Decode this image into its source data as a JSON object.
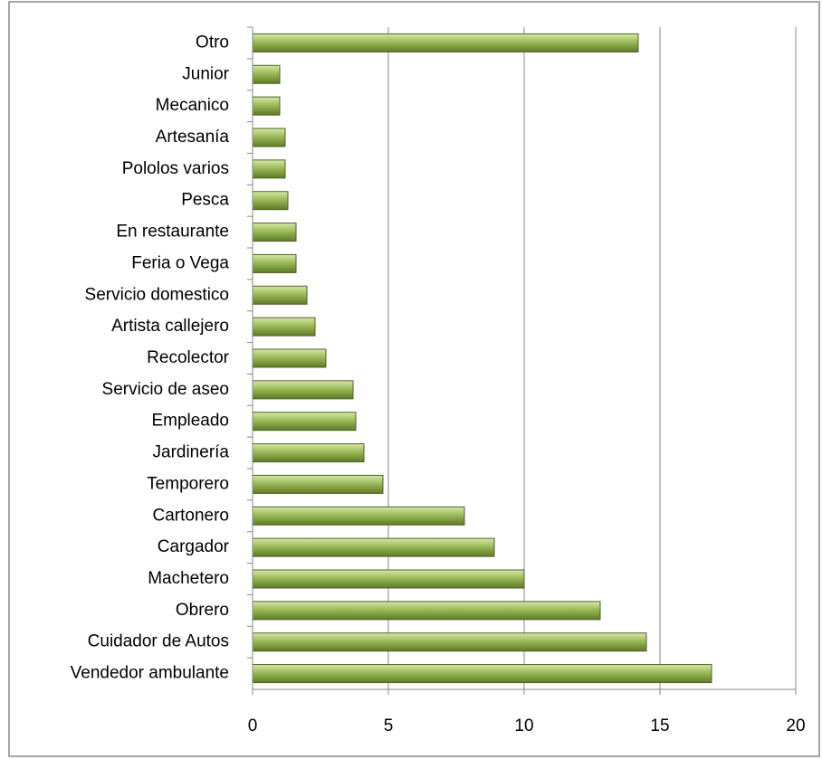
{
  "chart_data": {
    "type": "bar",
    "orientation": "horizontal",
    "categories": [
      "Otro",
      "Junior",
      "Mecanico",
      "Artesanía",
      "Pololos varios",
      "Pesca",
      "En restaurante",
      "Feria o Vega",
      "Servicio domestico",
      "Artista callejero",
      "Recolector",
      "Servicio de aseo",
      "Empleado",
      "Jardinería",
      "Temporero",
      "Cartonero",
      "Cargador",
      "Machetero",
      "Obrero",
      "Cuidador de Autos",
      "Vendedor ambulante"
    ],
    "values": [
      14.2,
      1.0,
      1.0,
      1.2,
      1.2,
      1.3,
      1.6,
      1.6,
      2.0,
      2.3,
      2.7,
      3.7,
      3.8,
      4.1,
      4.8,
      7.8,
      8.9,
      10.0,
      12.8,
      14.5,
      16.9
    ],
    "color": "#9bbb59",
    "xlim": [
      0,
      20
    ],
    "xticks": [
      0,
      5,
      10,
      15,
      20
    ],
    "grid": true
  }
}
